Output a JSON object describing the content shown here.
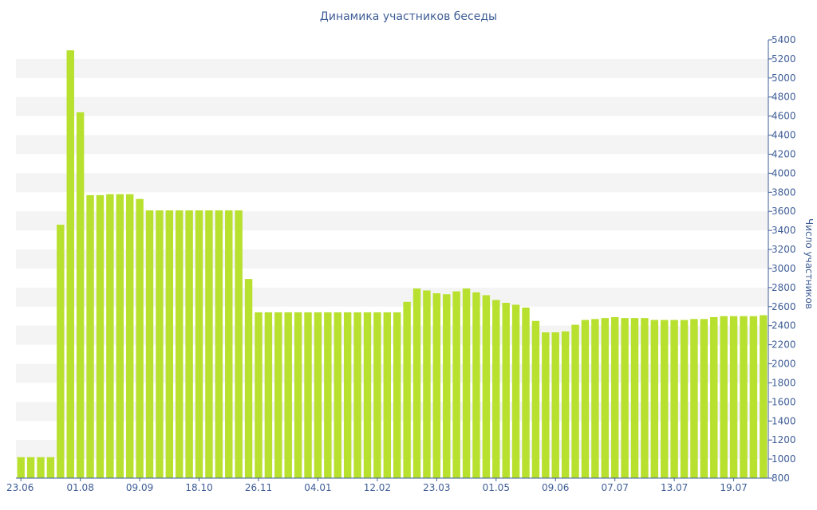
{
  "chart_data": {
    "type": "bar",
    "title": "Динамика участников беседы",
    "ylabel": "Число участников",
    "xlabel": "",
    "ylim": [
      800,
      5400
    ],
    "y_axis_side": "right",
    "grid": "alternating horizontal bands",
    "colors": {
      "bar": "#b8e02f",
      "band": "#f4f4f4",
      "text": "#3e5d96",
      "axis": "#3e5d96"
    },
    "x_tick_labels": [
      "23.06",
      "01.08",
      "09.09",
      "18.10",
      "26.11",
      "04.01",
      "12.02",
      "23.03",
      "01.05",
      "09.06",
      "07.07",
      "13.07",
      "19.07"
    ],
    "x_tick_positions": [
      0,
      6,
      12,
      18,
      24,
      30,
      36,
      42,
      48,
      54,
      60,
      66,
      72
    ],
    "y_ticks": [
      800,
      1000,
      1200,
      1400,
      1600,
      1800,
      2000,
      2200,
      2400,
      2600,
      2800,
      3000,
      3200,
      3400,
      3600,
      3800,
      4000,
      4200,
      4400,
      4600,
      4800,
      5000,
      5200,
      5400
    ],
    "values": [
      1020,
      1020,
      1020,
      1020,
      3460,
      5290,
      4640,
      3770,
      3770,
      3780,
      3780,
      3780,
      3730,
      3610,
      3610,
      3610,
      3610,
      3610,
      3610,
      3610,
      3610,
      3610,
      3610,
      2890,
      2540,
      2540,
      2540,
      2540,
      2540,
      2540,
      2540,
      2540,
      2540,
      2540,
      2540,
      2540,
      2540,
      2540,
      2540,
      2650,
      2790,
      2770,
      2740,
      2730,
      2760,
      2790,
      2750,
      2720,
      2670,
      2640,
      2620,
      2590,
      2450,
      2330,
      2330,
      2340,
      2410,
      2460,
      2470,
      2480,
      2490,
      2480,
      2480,
      2480,
      2460,
      2460,
      2460,
      2460,
      2470,
      2470,
      2490,
      2500,
      2500,
      2500,
      2500,
      2510
    ]
  }
}
